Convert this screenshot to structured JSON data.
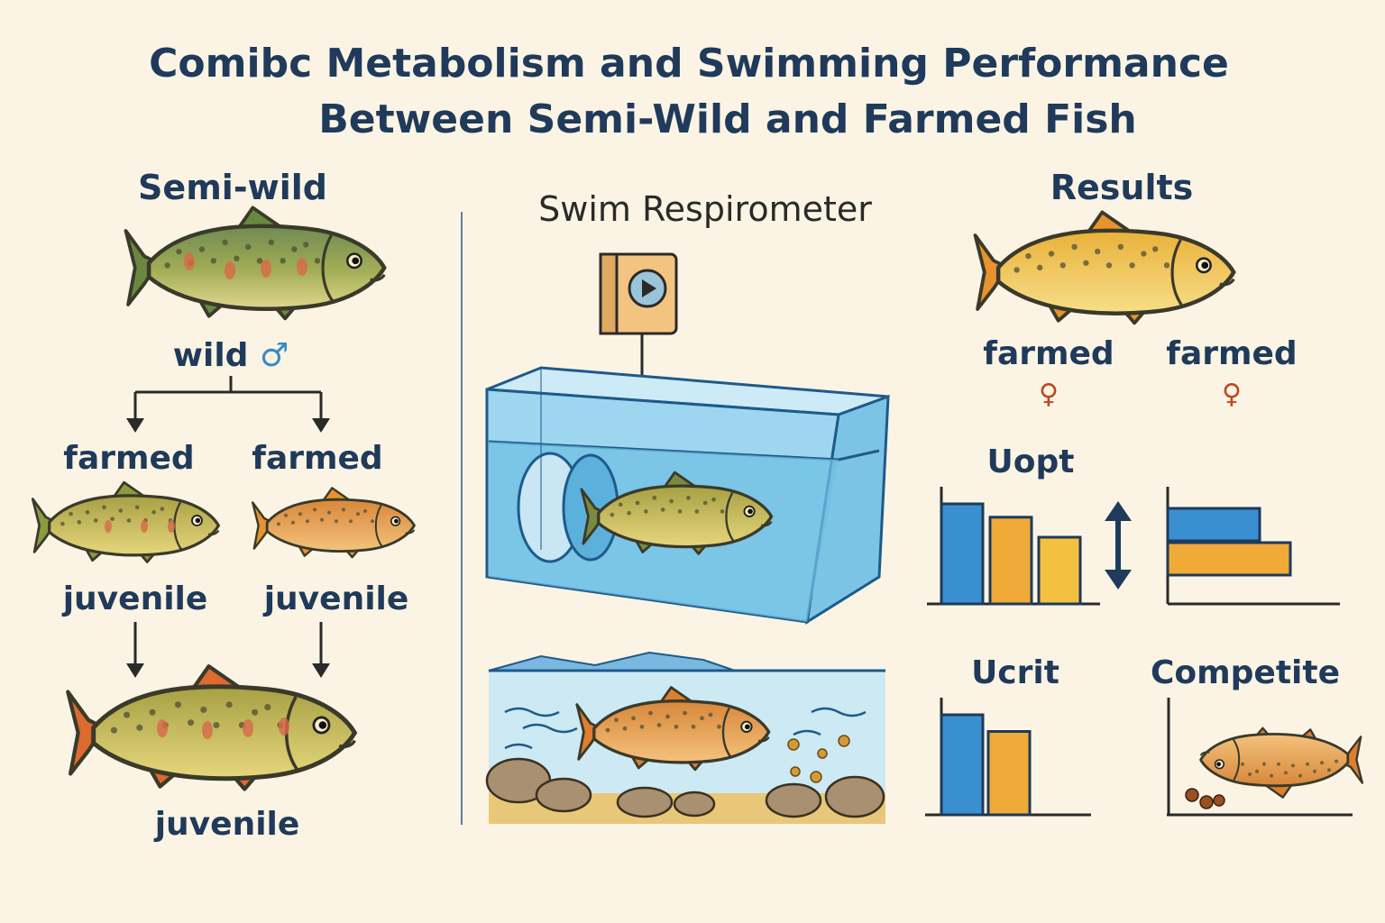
{
  "title_line1": "Comibc Metabolism and Swimming Performance",
  "title_line2": "Between Semi-Wild and Farmed Fish",
  "left": {
    "heading": "Semi-wild",
    "parent_label": "wild",
    "parent_symbol": "♂",
    "branch_left_label": "farmed",
    "branch_right_label": "farmed",
    "juvenile_left": "juvenile",
    "juvenile_right": "juvenile",
    "bottom_label": "juvenile"
  },
  "middle": {
    "heading": "Swim Respirometer"
  },
  "right": {
    "heading": "Results",
    "farmed_left": "farmed",
    "farmed_right": "farmed",
    "female_symbol": "♀",
    "uopt_label": "Uopt",
    "ucrit_label": "Ucrit",
    "competite_label": "Competite"
  },
  "colors": {
    "background": "#fbf4e4",
    "text": "#1f3a5a",
    "bar_blue": "#3a8fd0",
    "bar_orange": "#f0aa38",
    "bar_light_orange": "#f4c040",
    "water": "#8fd0ee",
    "female": "#c0471f",
    "male": "#3a8ac0"
  },
  "chart_data": [
    {
      "type": "bar",
      "title": "Uopt",
      "series": [
        {
          "values": [
            3.0,
            2.6,
            2.0
          ]
        }
      ]
    },
    {
      "type": "bar",
      "orientation": "horizontal",
      "title": "Uopt",
      "series": [
        {
          "values": [
            3.0,
            4.0
          ]
        }
      ]
    },
    {
      "type": "bar",
      "title": "Ucrit",
      "series": [
        {
          "values": [
            3.0,
            2.5
          ]
        }
      ]
    }
  ]
}
